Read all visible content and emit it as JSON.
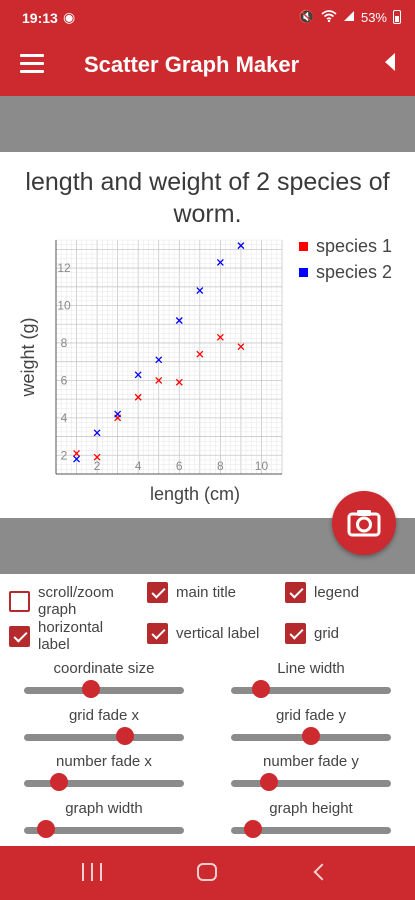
{
  "status_bar": {
    "time": "19:13",
    "battery": "53%"
  },
  "app_bar": {
    "title": "Scatter Graph Maker"
  },
  "chart_data": {
    "type": "scatter",
    "title": "length and weight of 2 species of worm.",
    "xlabel": "length (cm)",
    "ylabel": "weight (g)",
    "xlim": [
      0,
      11
    ],
    "ylim": [
      1,
      13.5
    ],
    "xticks": [
      2,
      4,
      6,
      8,
      10
    ],
    "yticks": [
      2,
      4,
      6,
      8,
      10,
      12
    ],
    "grid": true,
    "legend": "top-right",
    "series": [
      {
        "name": "species 1",
        "color": "#ff0000",
        "x": [
          1,
          2,
          3,
          4,
          5,
          6,
          7,
          8,
          9
        ],
        "y": [
          2.1,
          1.9,
          4.0,
          5.1,
          6.0,
          5.9,
          7.4,
          8.3,
          7.8
        ]
      },
      {
        "name": "species 2",
        "color": "#0000ff",
        "x": [
          1,
          2,
          3,
          4,
          5,
          6,
          7,
          8,
          9
        ],
        "y": [
          1.8,
          3.2,
          4.2,
          6.3,
          7.1,
          9.2,
          10.8,
          12.3,
          13.2
        ]
      }
    ]
  },
  "checkboxes": [
    {
      "label": "scroll/zoom graph",
      "checked": false
    },
    {
      "label": "main title",
      "checked": true
    },
    {
      "label": "legend",
      "checked": true
    },
    {
      "label": "horizontal label",
      "checked": true
    },
    {
      "label": "vertical label",
      "checked": true
    },
    {
      "label": "grid",
      "checked": true
    }
  ],
  "sliders": [
    {
      "label": "coordinate size",
      "value": 0.42
    },
    {
      "label": "Line width",
      "value": 0.19
    },
    {
      "label": "grid fade x",
      "value": 0.63
    },
    {
      "label": "grid fade y",
      "value": 0.5
    },
    {
      "label": "number fade x",
      "value": 0.22
    },
    {
      "label": "number fade y",
      "value": 0.24
    },
    {
      "label": "graph width",
      "value": 0.14
    },
    {
      "label": "graph height",
      "value": 0.14
    }
  ],
  "icons": {
    "menu": "menu-icon",
    "back": "back-arrow-icon",
    "camera": "camera-icon",
    "globe": "globe-icon",
    "mute": "mute-icon",
    "wifi": "wifi-icon",
    "signal": "signal-icon",
    "battery": "battery-icon"
  },
  "colors": {
    "accent": "#cc2a2e",
    "band": "#8b8b8b"
  }
}
